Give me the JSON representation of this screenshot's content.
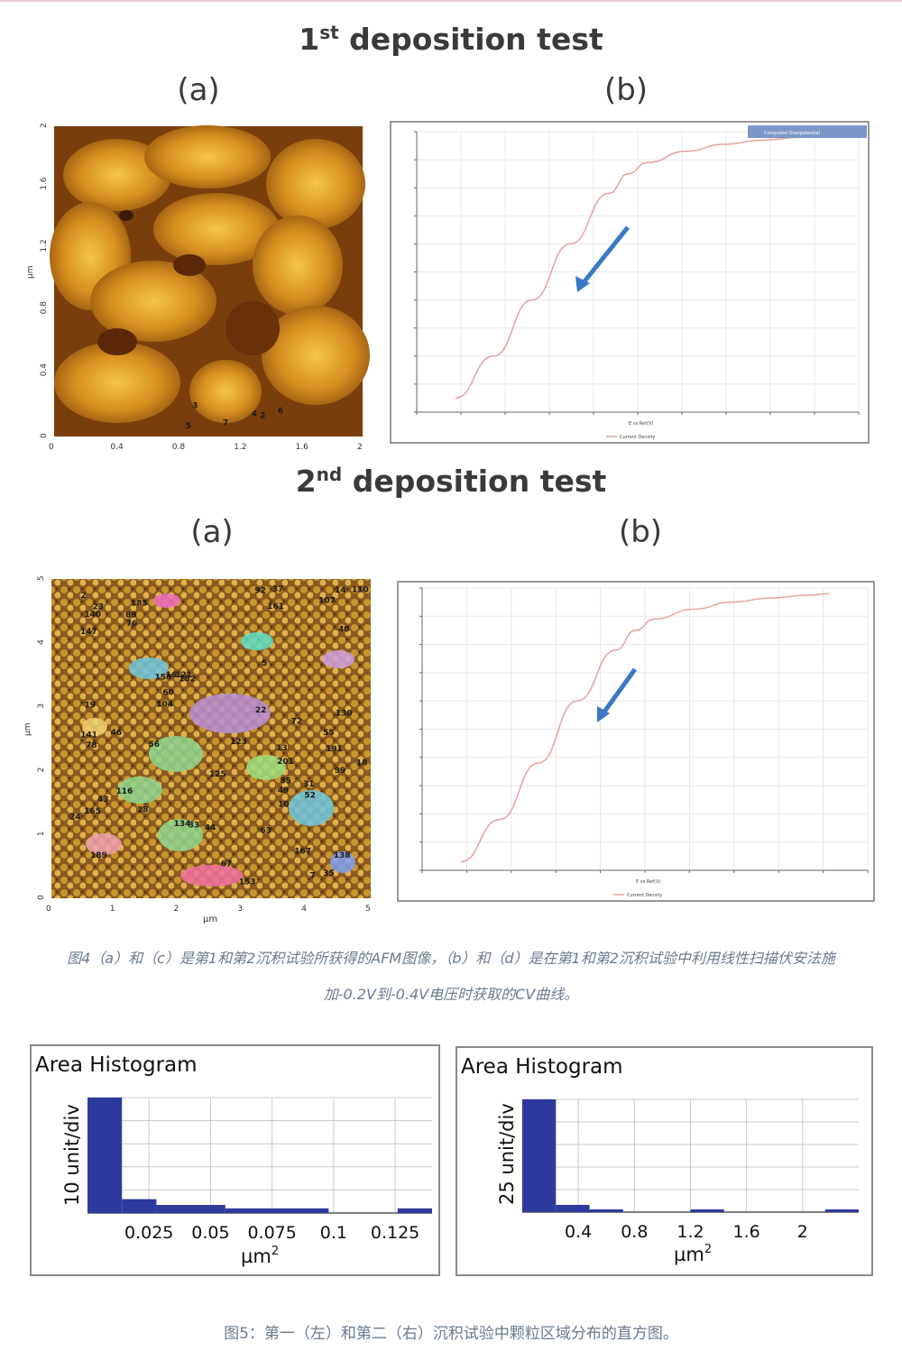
{
  "figure4": {
    "test1_title": "1",
    "test1_sup": "st",
    "test1_rest": " deposition test",
    "test2_title": "2",
    "test2_sup": "nd",
    "test2_rest": " deposition test",
    "label_a": "(a)",
    "label_b": "(b)",
    "afm1": {
      "y_axis_label": "µm",
      "y_ticks": [
        "0",
        "0.4",
        "0.8",
        "1.2",
        "1.6",
        "2"
      ],
      "x_ticks": [
        "0",
        "0.4",
        "0.8",
        "1.2",
        "1.6",
        "2"
      ],
      "particle_labels": [
        "2",
        "3",
        "4",
        "5",
        "6",
        "7"
      ]
    },
    "afm2": {
      "y_axis_label": "µm",
      "x_axis_label": "µm",
      "y_ticks": [
        "0",
        "1",
        "2",
        "3",
        "4",
        "5"
      ],
      "x_ticks": [
        "0",
        "1",
        "2",
        "3",
        "4",
        "5"
      ],
      "particle_labels": [
        "201",
        "191",
        "189",
        "185",
        "182",
        "167",
        "165",
        "161",
        "158",
        "153",
        "147",
        "141",
        "140",
        "138",
        "134",
        "130",
        "125",
        "123",
        "121",
        "116",
        "110",
        "107",
        "104",
        "99",
        "92",
        "89",
        "85",
        "78",
        "76",
        "72",
        "67",
        "63",
        "60",
        "56",
        "55",
        "52",
        "49",
        "46",
        "44",
        "43",
        "40",
        "37",
        "35",
        "33",
        "31",
        "28",
        "24",
        "23",
        "22",
        "19",
        "18",
        "16",
        "14",
        "13",
        "10",
        "7",
        "5",
        "2"
      ]
    },
    "cv1": {
      "legend_text": "Current Density",
      "x_label": "E vs Ref(V)",
      "inset_label": "Computed Overpotential"
    },
    "cv2": {
      "legend_text": "Current Density",
      "x_label": "E vs Ref(V)"
    },
    "caption_line1": "图4（a）和（c）是第1和第2沉积试验所获得的AFM图像，（b）和（d）是在第1和第2沉积试验中利用线性扫描伏安法施",
    "caption_line2": "加-0.2V到-0.4V电压时获取的CV曲线。"
  },
  "figure5": {
    "caption": "图5：第一（左）和第二（右）沉积试验中颗粒区域分布的直方图。",
    "colors": {
      "bar": "#2e3a9e",
      "grid": "#c8c8c8"
    }
  },
  "chart_data": [
    {
      "type": "line",
      "title": "",
      "xlabel": "E vs Ref(V)",
      "ylabel": "",
      "series": [
        {
          "name": "Current Density",
          "x": [
            -0.4,
            -0.36,
            -0.32,
            -0.28,
            -0.24,
            -0.22,
            -0.2,
            -0.16,
            -0.12,
            -0.08,
            -0.04,
            0
          ],
          "values": [
            0.95,
            0.8,
            0.6,
            0.4,
            0.22,
            0.15,
            0.11,
            0.07,
            0.045,
            0.03,
            0.02,
            0.015
          ]
        }
      ]
    },
    {
      "type": "line",
      "title": "",
      "xlabel": "E vs Ref(V)",
      "ylabel": "",
      "series": [
        {
          "name": "Current Density",
          "x": [
            -0.4,
            -0.36,
            -0.32,
            -0.28,
            -0.24,
            -0.22,
            -0.2,
            -0.16,
            -0.12,
            -0.08,
            -0.04,
            -0.02
          ],
          "values": [
            0.97,
            0.82,
            0.62,
            0.4,
            0.22,
            0.15,
            0.11,
            0.075,
            0.05,
            0.035,
            0.025,
            0.02
          ]
        }
      ]
    },
    {
      "type": "bar",
      "title": "Area Histogram",
      "xlabel": "µm²",
      "ylabel": "10 unit/div",
      "x_ticks": [
        "0.025",
        "0.05",
        "0.075",
        "0.1",
        "0.125"
      ],
      "x_tick_values": [
        0.025,
        0.05,
        0.075,
        0.1,
        0.125
      ],
      "xlim": [
        0,
        0.14
      ],
      "ylim": [
        0,
        50
      ],
      "bins": [
        {
          "x0": 0.0,
          "x1": 0.014,
          "value": 50
        },
        {
          "x0": 0.014,
          "x1": 0.028,
          "value": 6
        },
        {
          "x0": 0.028,
          "x1": 0.056,
          "value": 3.5
        },
        {
          "x0": 0.056,
          "x1": 0.098,
          "value": 2
        },
        {
          "x0": 0.126,
          "x1": 0.14,
          "value": 2
        }
      ]
    },
    {
      "type": "bar",
      "title": "Area Histogram",
      "xlabel": "µm²",
      "ylabel": "25 unit/div",
      "x_ticks": [
        "0.4",
        "0.8",
        "1.2",
        "1.6",
        "2"
      ],
      "x_tick_values": [
        0.4,
        0.8,
        1.2,
        1.6,
        2.0
      ],
      "xlim": [
        0,
        2.4
      ],
      "ylim": [
        0,
        125
      ],
      "bins": [
        {
          "x0": 0.0,
          "x1": 0.24,
          "value": 125
        },
        {
          "x0": 0.24,
          "x1": 0.48,
          "value": 8
        },
        {
          "x0": 0.48,
          "x1": 0.72,
          "value": 3
        },
        {
          "x0": 1.2,
          "x1": 1.44,
          "value": 3
        },
        {
          "x0": 2.16,
          "x1": 2.4,
          "value": 3
        }
      ]
    }
  ]
}
